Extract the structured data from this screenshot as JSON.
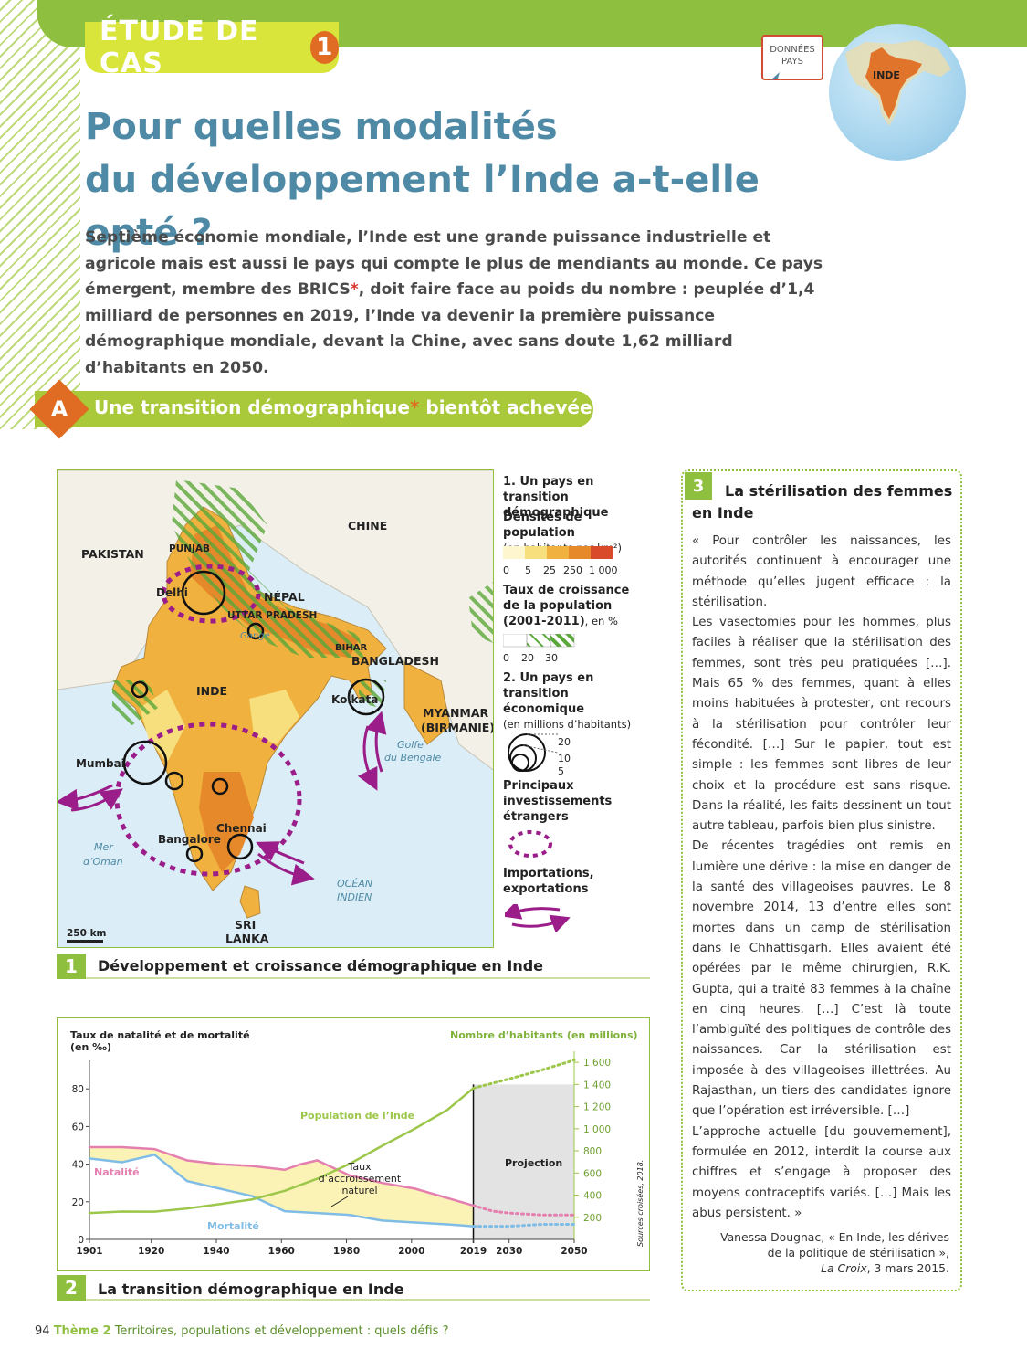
{
  "header": {
    "badge_text": "ÉTUDE DE CAS",
    "badge_number": "1",
    "donnees_line1": "DONNÉES",
    "donnees_line2": "PAYS",
    "globe_label": "INDE"
  },
  "title": {
    "line1": "Pour quelles modalités",
    "line2": "du développement l’Inde a-t-elle opté ?"
  },
  "intro": {
    "part1": "Septième économie mondiale, l’Inde est une grande puissance industrielle et agricole mais est aussi le pays qui compte le plus de mendiants au monde. Ce pays émergent, membre des BRICS",
    "star": "*",
    "part2": ", doit faire face au poids du nombre : peuplée d’1,4 milliard de personnes en 2019, l’Inde va devenir la première puissance démographique mondiale, devant la Chine, avec sans doute 1,62 milliard d’habitants en 2050."
  },
  "section_a": {
    "letter": "A",
    "title_part1": "Une transition démographique",
    "star": "*",
    "title_part2": " bientôt achevée ?"
  },
  "map": {
    "labels": {
      "pakistan": "PAKISTAN",
      "chine": "CHINE",
      "punjab": "PUNJAB",
      "delhi": "Delhi",
      "nepal": "NÉPAL",
      "uttar": "UTTAR PRADESH",
      "gange": "Gange",
      "bihar": "BIHAR",
      "bangladesh": "BANGLADESH",
      "inde": "INDE",
      "kolkata": "Kolkata",
      "myanmar1": "MYANMAR",
      "myanmar2": "(BIRMANIE)",
      "golfe1": "Golfe",
      "golfe2": "du Bengale",
      "mumbai": "Mumbai",
      "mer1": "Mer",
      "mer2": "d’Oman",
      "bangalore": "Bangalore",
      "chennai": "Chennai",
      "ocean1": "OCÉAN",
      "ocean2": "INDIEN",
      "sri1": "SRI",
      "sri2": "LANKA",
      "scale": "250 km"
    },
    "legend": {
      "h1_line1": "1. Un pays en transition",
      "h1_line2": "démographique",
      "density_title": "Densités de population",
      "density_unit": "(en habitants par km²)",
      "density_ticks": [
        "0",
        "5",
        "25",
        "250",
        "1 000"
      ],
      "density_colors": [
        "#fdf6cf",
        "#f7df7e",
        "#f0b13f",
        "#e6892b",
        "#d94a2a"
      ],
      "growth_title1": "Taux de croissance",
      "growth_title2": "de la population",
      "growth_title3": "(2001-2011)",
      "growth_unit": ", en %",
      "growth_ticks": [
        "0",
        "20",
        "30"
      ],
      "h2_line1": "2. Un pays en transition",
      "h2_line2": "économique",
      "h2_unit": "(en millions d’habitants)",
      "circle_values": [
        "20",
        "10",
        "5"
      ],
      "invest1": "Principaux",
      "invest2": "investissements",
      "invest3": "étrangers",
      "trade1": "Importations,",
      "trade2": "exportations"
    }
  },
  "caption1": {
    "num": "1",
    "text": "Développement et croissance démographique en Inde"
  },
  "chart_data": {
    "type": "line",
    "left_axis_title1": "Taux de natalité et de mortalité",
    "left_axis_title2": "(en ‰)",
    "right_axis_title": "Nombre d’habitants (en millions)",
    "x_ticks": [
      "1901",
      "1920",
      "1940",
      "1960",
      "1980",
      "2000",
      "2019",
      "2030",
      "2050"
    ],
    "left_ticks": [
      "0",
      "20",
      "40",
      "60",
      "80"
    ],
    "right_ticks": [
      "200",
      "400",
      "600",
      "800",
      "1 000",
      "1 200",
      "1 400",
      "1 600"
    ],
    "ylim_left": [
      0,
      100
    ],
    "ylim_right": [
      0,
      1700
    ],
    "projection_label": "Projection",
    "projection_start": 2019,
    "annotation1": "Taux",
    "annotation2": "d’accroissement",
    "annotation3": "naturel",
    "source": "Sources croisées, 2018.",
    "series": [
      {
        "name": "Natalité",
        "color": "#e47fb0",
        "x": [
          1901,
          1911,
          1921,
          1931,
          1941,
          1951,
          1961,
          1966,
          1971,
          1976,
          1981,
          1991,
          2001,
          2011,
          2019
        ],
        "y": [
          49,
          49,
          48,
          42,
          40,
          39,
          37,
          40,
          42,
          38,
          34,
          30,
          27,
          22,
          18
        ]
      },
      {
        "name": "Mortalité",
        "color": "#7fbde6",
        "x": [
          1901,
          1911,
          1921,
          1931,
          1941,
          1951,
          1961,
          1971,
          1981,
          1991,
          2001,
          2011,
          2019
        ],
        "y": [
          43,
          41,
          45,
          31,
          27,
          23,
          15,
          14,
          13,
          10,
          9,
          8,
          7
        ]
      },
      {
        "name": "Population de l’Inde",
        "color": "#9cc74a",
        "x": [
          1901,
          1911,
          1921,
          1931,
          1941,
          1951,
          1961,
          1971,
          1981,
          1991,
          2001,
          2011,
          2019
        ],
        "y": [
          238,
          252,
          251,
          279,
          319,
          361,
          439,
          548,
          683,
          846,
          1000,
          1170,
          1366
        ]
      }
    ],
    "projections": [
      {
        "color": "#e47fb0",
        "x": [
          2019,
          2025,
          2030,
          2040,
          2050
        ],
        "y": [
          18,
          15,
          14,
          13,
          13
        ]
      },
      {
        "color": "#7fbde6",
        "x": [
          2019,
          2030,
          2040,
          2050
        ],
        "y": [
          7,
          7,
          8,
          8
        ]
      },
      {
        "color": "#9cc74a",
        "x": [
          2019,
          2030,
          2040,
          2050
        ],
        "y": [
          1366,
          1450,
          1530,
          1620
        ]
      }
    ]
  },
  "caption2": {
    "num": "2",
    "text": "La transition démographique en Inde"
  },
  "doc3": {
    "num": "3",
    "title": "La stérilisation des femmes en Inde",
    "p1": "« Pour contrôler les naissances, les autorités continuent à encourager une méthode qu’elles jugent efficace : la stérilisation.",
    "p2": "Les vasectomies pour les hommes, plus faciles à réaliser que la stérilisation des femmes, sont très peu pratiquées […]. Mais 65 % des femmes, quant à elles moins habituées à protester, ont recours à la stérilisation pour contrôler leur fécondité. […] Sur le papier, tout est simple : les femmes sont libres de leur choix et la procédure est sans risque. Dans la réalité, les faits dessinent un tout autre tableau, parfois bien plus sinistre.",
    "p3": "De récentes tragédies ont remis en lumière une dérive : la mise en danger de la santé des villageoises pauvres. Le 8 novembre 2014, 13 d’entre elles sont mortes dans un camp de stérilisation dans le Chhattisgarh. Elles avaient été opérées par le même chirurgien, R.K. Gupta, qui a traité 83 femmes à la chaîne en cinq heures. […] C’est là toute l’ambiguïté des politiques de contrôle des naissances. Car la stérilisation est imposée à des villageoises illettrées. Au Rajasthan, un tiers des candidates ignore que l’opération est irréversible. […]",
    "p4": "L’approche actuelle [du gouvernement], formulée en 2012, interdit la course aux chiffres et s’engage à proposer des moyens contraceptifs variés. […] Mais les abus persistent. »",
    "src1": "Vanessa Dougnac, « En Inde, les dérives",
    "src2": "de la politique de stérilisation »,",
    "src3": "La Croix",
    "src4": ", 3 mars 2015."
  },
  "footer": {
    "page": "94",
    "theme": "Thème 2",
    "text": "Territoires, populations et développement : quels défis ?"
  }
}
